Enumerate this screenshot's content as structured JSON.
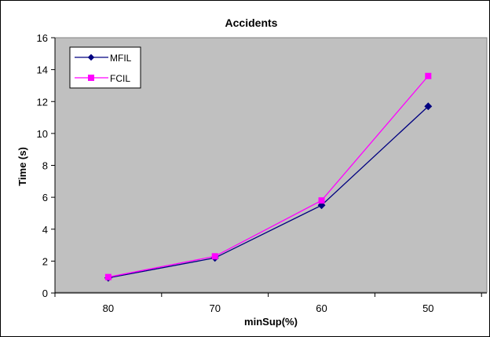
{
  "chart_data": {
    "type": "line",
    "title": "Accidents",
    "xlabel": "minSup(%)",
    "ylabel": "Time (s)",
    "categories": [
      "80",
      "70",
      "60",
      "50"
    ],
    "ylim": [
      0,
      16
    ],
    "yticks": [
      0,
      2,
      4,
      6,
      8,
      10,
      12,
      14,
      16
    ],
    "grid": false,
    "plot_background": "#c0c0c0",
    "legend_position": "top-left",
    "series": [
      {
        "name": "MFIL",
        "values": [
          0.95,
          2.2,
          5.5,
          11.7
        ],
        "color": "#000080",
        "marker": "diamond"
      },
      {
        "name": "FCIL",
        "values": [
          1.0,
          2.3,
          5.8,
          13.6
        ],
        "color": "#ff00ff",
        "marker": "square"
      }
    ]
  }
}
